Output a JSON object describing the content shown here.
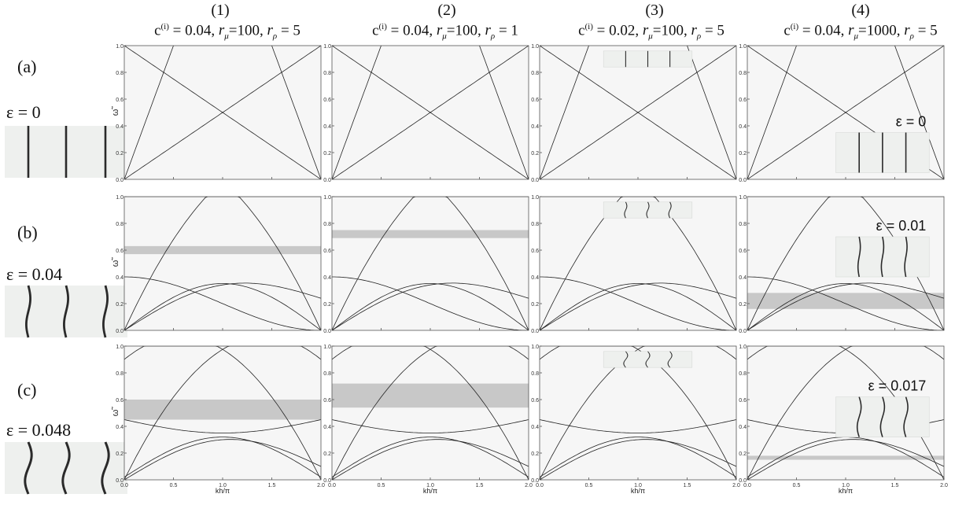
{
  "columns": [
    {
      "label": "(1)",
      "c": "0.04",
      "r_mu": "100",
      "r_rho": "5"
    },
    {
      "label": "(2)",
      "c": "0.04",
      "r_mu": "100",
      "r_rho": "1"
    },
    {
      "label": "(3)",
      "c": "0.02",
      "r_mu": "100",
      "r_rho": "5"
    },
    {
      "label": "(4)",
      "c": "0.04",
      "r_mu": "1000",
      "r_rho": "5"
    }
  ],
  "params_text": {
    "c_sym": "c",
    "c_sup": "(i)",
    "mu_sym": "r",
    "mu_sub": "μ",
    "rho_sym": "r",
    "rho_sub": "ρ",
    "eq": " = ",
    "eq2": "=",
    "sep": ", "
  },
  "rows": [
    {
      "label": "(a)",
      "epsilon": "ε = 0"
    },
    {
      "label": "(b)",
      "epsilon": "ε = 0.04"
    },
    {
      "label": "(c)",
      "epsilon": "ε = 0.048"
    }
  ],
  "inset_labels": {
    "a4": "ε = 0",
    "b4": "ε = 0.01",
    "c4": "ε = 0.017"
  },
  "colors": {
    "band_gap": "#c8c8c8",
    "panel_bg": "#f6f6f6",
    "strip_bg": "#eef0ee",
    "curve": "#222222"
  },
  "chart_data": {
    "type": "line",
    "xlabel": "kh/π",
    "ylabel": "ω̃",
    "xlim": [
      0,
      2
    ],
    "ylim": [
      0,
      1
    ],
    "x_ticks": [
      "0.0",
      "0.5",
      "1.0",
      "1.5",
      "2.0"
    ],
    "y_ticks": [
      "0.0",
      "0.2",
      "0.4",
      "0.6",
      "0.8",
      "1.0"
    ],
    "panels": [
      {
        "id": "a1",
        "band_gaps": []
      },
      {
        "id": "a2",
        "band_gaps": []
      },
      {
        "id": "a3",
        "band_gaps": []
      },
      {
        "id": "a4",
        "band_gaps": []
      },
      {
        "id": "b1",
        "band_gaps": [
          [
            0.57,
            0.63
          ]
        ]
      },
      {
        "id": "b2",
        "band_gaps": [
          [
            0.69,
            0.75
          ]
        ]
      },
      {
        "id": "b3",
        "band_gaps": []
      },
      {
        "id": "b4",
        "band_gaps": [
          [
            0.16,
            0.28
          ]
        ]
      },
      {
        "id": "c1",
        "band_gaps": [
          [
            0.45,
            0.6
          ]
        ]
      },
      {
        "id": "c2",
        "band_gaps": [
          [
            0.54,
            0.72
          ]
        ]
      },
      {
        "id": "c3",
        "band_gaps": []
      },
      {
        "id": "c4",
        "band_gaps": [
          [
            0.15,
            0.18
          ]
        ]
      }
    ]
  }
}
